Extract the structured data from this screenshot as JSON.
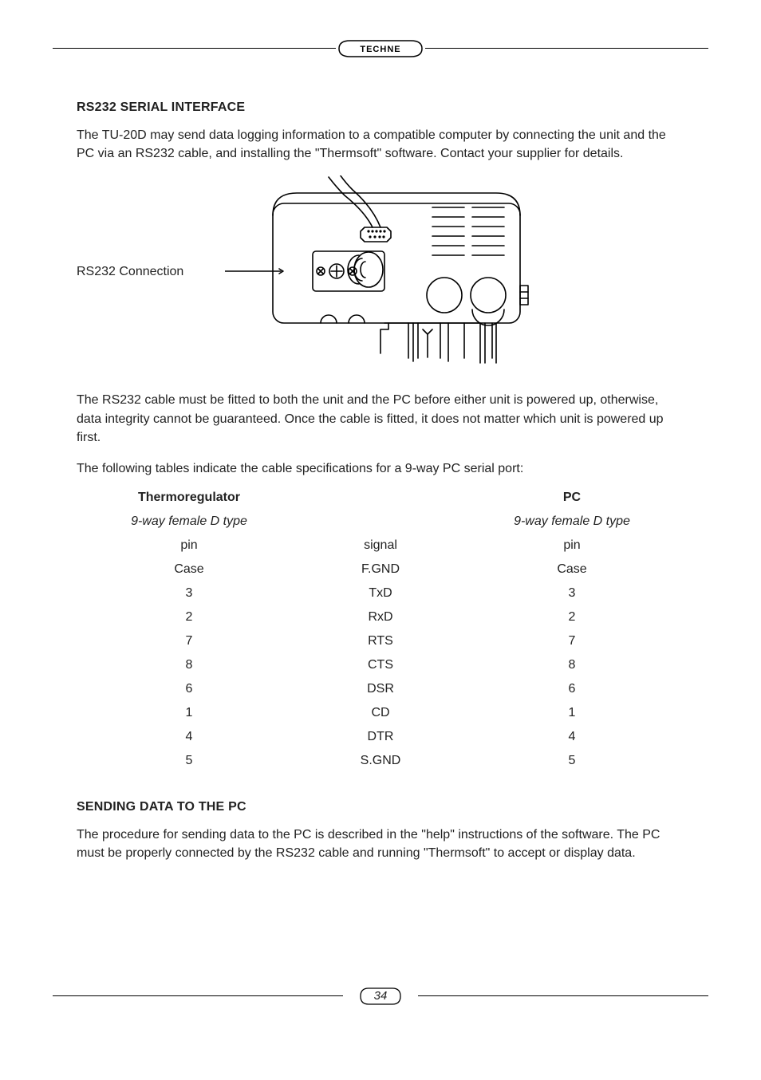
{
  "brand": "TECHNE",
  "page_number": "34",
  "sections": {
    "rs232": {
      "heading": "RS232 SERIAL INTERFACE",
      "para1": "The TU-20D may send data logging information to a compatible computer by connecting the unit and the PC via an RS232 cable, and installing the \"Thermsoft\" software. Contact your supplier for details.",
      "figure_label": "RS232 Connection",
      "para2": "The RS232 cable must be fitted to both the unit and the PC before either unit is powered up, otherwise, data integrity cannot be guaranteed. Once the cable is fitted, it does not matter which unit is powered up first.",
      "para3": "The following tables indicate the cable specifications for a 9-way PC serial port:"
    },
    "sending": {
      "heading": "SENDING DATA TO THE PC",
      "para1": "The procedure for sending data to the PC is described in the \"help\" instructions of the software. The PC must be properly connected by the RS232 cable and running \"Thermsoft\" to accept or display data."
    }
  },
  "table": {
    "col_headers": {
      "c1": "Thermoregulator",
      "c2": "",
      "c3": "PC"
    },
    "sub_headers": {
      "c1": "9-way female D type",
      "c2": "",
      "c3": "9-way female D type"
    },
    "col_labels": {
      "c1": "pin",
      "c2": "signal",
      "c3": "pin"
    },
    "rows": [
      {
        "c1": "Case",
        "c2": "F.GND",
        "c3": "Case"
      },
      {
        "c1": "3",
        "c2": "TxD",
        "c3": "3"
      },
      {
        "c1": "2",
        "c2": "RxD",
        "c3": "2"
      },
      {
        "c1": "7",
        "c2": "RTS",
        "c3": "7"
      },
      {
        "c1": "8",
        "c2": "CTS",
        "c3": "8"
      },
      {
        "c1": "6",
        "c2": "DSR",
        "c3": "6"
      },
      {
        "c1": "1",
        "c2": "CD",
        "c3": "1"
      },
      {
        "c1": "4",
        "c2": "DTR",
        "c3": "4"
      },
      {
        "c1": "5",
        "c2": "S.GND",
        "c3": "5"
      }
    ]
  },
  "style": {
    "text_color": "#222222",
    "rule_color": "#000000",
    "background": "#ffffff",
    "body_fontsize": 16,
    "heading_fontsize": 16
  }
}
